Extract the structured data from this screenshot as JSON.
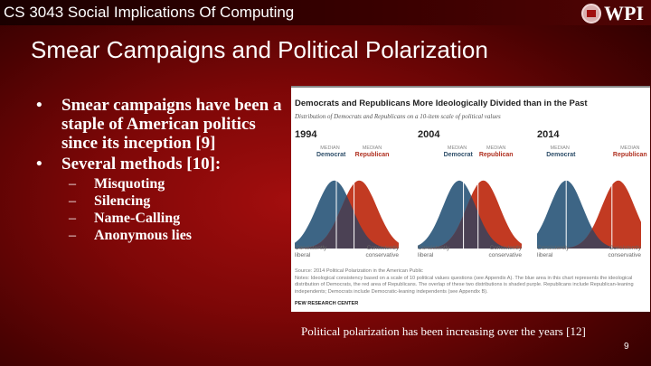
{
  "header": {
    "course": "CS 3043 Social Implications Of Computing",
    "logo_text": "WPI"
  },
  "slide": {
    "title": "Smear Campaigns and Political Polarization",
    "bullets": [
      {
        "text": "Smear campaigns have been a staple of American politics since its inception [9]"
      },
      {
        "text": "Several methods [10]:",
        "sub": [
          "Misquoting",
          "Silencing",
          "Name-Calling",
          "Anonymous lies"
        ]
      }
    ],
    "caption": "Political polarization has been increasing over the years [12]",
    "page_number": "9"
  },
  "figure": {
    "title": "Democrats and Republicans More Ideologically Divided than in the Past",
    "subtitle": "Distribution of Democrats and Republicans on a 10-item scale of political values",
    "median_label": "MEDIAN",
    "dem_label": "Democrat",
    "rep_label": "Republican",
    "left_label_1": "Consistently",
    "left_label_2": "liberal",
    "right_label_1": "Consistently",
    "right_label_2": "conservative",
    "panels": [
      {
        "year": "1994"
      },
      {
        "year": "2004"
      },
      {
        "year": "2014"
      }
    ],
    "source": "Source: 2014 Political Polarization in the American Public",
    "notes": "Notes: Ideological consistency based on a scale of 10 political values questions (see Appendix A). The blue area in this chart represents the ideological distribution of Democrats, the red area of Republicans. The overlap of these two distributions is shaded purple. Republicans include Republican-leaning independents; Democrats include Democratic-leaning independents (see Appendix B).",
    "credit": "PEW RESEARCH CENTER",
    "colors": {
      "democrat": "#3d6585",
      "republican": "#c23a22",
      "overlap": "#4b4154"
    }
  }
}
